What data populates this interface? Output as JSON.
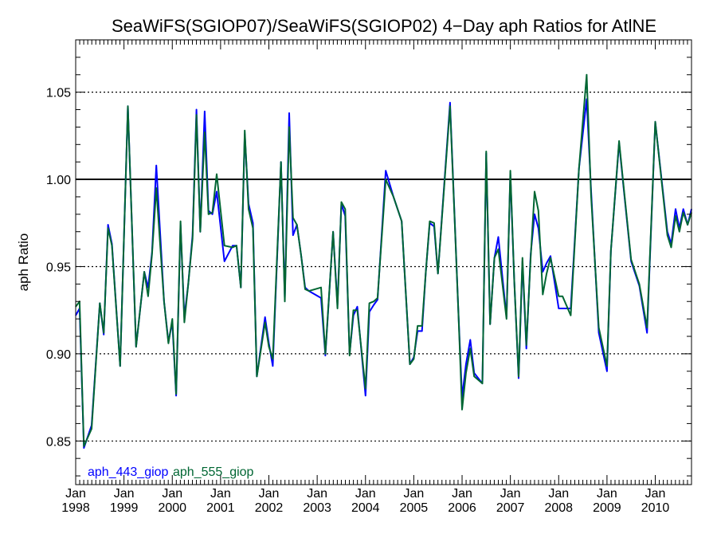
{
  "chart_data": {
    "type": "line",
    "title": "SeaWiFS(SGIOP07)/SeaWiFS(SGIOP02) 4−Day aph Ratios for AtlNE",
    "ylabel": "aph Ratio",
    "xlabel": "",
    "ylim": [
      0.825,
      1.08
    ],
    "xlim": [
      1998.0,
      2010.75
    ],
    "y_ticks": [
      0.85,
      0.9,
      0.95,
      1.0,
      1.05
    ],
    "y_tick_labels": [
      "0.85",
      "0.90",
      "0.95",
      "1.00",
      "1.05"
    ],
    "x_ticks": [
      {
        "month": "Jan",
        "year": "1998",
        "x": 1998
      },
      {
        "month": "Jan",
        "year": "1999",
        "x": 1999
      },
      {
        "month": "Jan",
        "year": "2000",
        "x": 2000
      },
      {
        "month": "Jan",
        "year": "2001",
        "x": 2001
      },
      {
        "month": "Jan",
        "year": "2002",
        "x": 2002
      },
      {
        "month": "Jan",
        "year": "2003",
        "x": 2003
      },
      {
        "month": "Jan",
        "year": "2004",
        "x": 2004
      },
      {
        "month": "Jan",
        "year": "2005",
        "x": 2005
      },
      {
        "month": "Jan",
        "year": "2006",
        "x": 2006
      },
      {
        "month": "Jan",
        "year": "2007",
        "x": 2007
      },
      {
        "month": "Jan",
        "year": "2008",
        "x": 2008
      },
      {
        "month": "Jan",
        "year": "2009",
        "x": 2009
      },
      {
        "month": "Jan",
        "year": "2010",
        "x": 2010
      }
    ],
    "reference_line": 1.0,
    "dotted_gridlines": [
      0.85,
      0.9,
      0.95,
      1.05
    ],
    "legend_placement": "bottom-left",
    "colors": {
      "aph_443_giop": "#0000ff",
      "aph_555_giop": "#006633",
      "reference": "#000000"
    },
    "series": [
      {
        "name": "aph_443_giop",
        "color": "#0000ff",
        "x": [
          1998.0,
          1998.08,
          1998.17,
          1998.33,
          1998.5,
          1998.58,
          1998.67,
          1998.75,
          1998.92,
          1999.08,
          1999.25,
          1999.42,
          1999.5,
          1999.58,
          1999.67,
          1999.83,
          1999.92,
          2000.0,
          2000.08,
          2000.17,
          2000.25,
          2000.33,
          2000.42,
          2000.5,
          2000.58,
          2000.67,
          2000.75,
          2000.83,
          2000.92,
          2001.08,
          2001.25,
          2001.33,
          2001.42,
          2001.5,
          2001.58,
          2001.67,
          2001.75,
          2001.92,
          2002.0,
          2002.08,
          2002.25,
          2002.33,
          2002.42,
          2002.5,
          2002.58,
          2002.67,
          2002.75,
          2002.83,
          2003.08,
          2003.17,
          2003.33,
          2003.42,
          2003.5,
          2003.58,
          2003.67,
          2003.75,
          2003.83,
          2004.0,
          2004.08,
          2004.17,
          2004.25,
          2004.42,
          2004.58,
          2004.75,
          2004.92,
          2005.0,
          2005.08,
          2005.17,
          2005.25,
          2005.33,
          2005.42,
          2005.5,
          2005.58,
          2005.75,
          2005.92,
          2006.0,
          2006.08,
          2006.17,
          2006.25,
          2006.42,
          2006.5,
          2006.58,
          2006.67,
          2006.75,
          2006.92,
          2007.0,
          2007.08,
          2007.17,
          2007.25,
          2007.33,
          2007.42,
          2007.5,
          2007.58,
          2007.67,
          2007.75,
          2007.83,
          2008.0,
          2008.08,
          2008.25,
          2008.42,
          2008.58,
          2008.67,
          2008.83,
          2009.0,
          2009.08,
          2009.25,
          2009.33,
          2009.5,
          2009.67,
          2009.83,
          2010.0,
          2010.25,
          2010.33,
          2010.42,
          2010.5,
          2010.58,
          2010.67,
          2010.75
        ],
        "values": [
          0.922,
          0.926,
          0.846,
          0.859,
          0.929,
          0.911,
          0.974,
          0.963,
          0.893,
          1.042,
          0.904,
          0.947,
          0.938,
          0.958,
          1.008,
          0.93,
          0.907,
          0.918,
          0.876,
          0.974,
          0.921,
          0.94,
          0.968,
          1.04,
          0.97,
          1.039,
          0.982,
          0.98,
          0.993,
          0.953,
          0.962,
          0.962,
          0.938,
          1.026,
          0.986,
          0.975,
          0.887,
          0.921,
          0.906,
          0.893,
          1.01,
          0.932,
          1.038,
          0.968,
          0.974,
          0.956,
          0.938,
          0.936,
          0.932,
          0.899,
          0.97,
          0.928,
          0.986,
          0.979,
          0.9,
          0.922,
          0.927,
          0.876,
          0.924,
          0.928,
          0.931,
          1.005,
          0.99,
          0.976,
          0.894,
          0.898,
          0.913,
          0.913,
          0.947,
          0.975,
          0.973,
          0.946,
          0.978,
          1.044,
          0.926,
          0.875,
          0.894,
          0.908,
          0.889,
          0.883,
          1.015,
          0.917,
          0.955,
          0.967,
          0.921,
          1.003,
          0.942,
          0.886,
          0.953,
          0.903,
          0.957,
          0.98,
          0.972,
          0.947,
          0.952,
          0.956,
          0.926,
          0.926,
          0.926,
          1.006,
          1.046,
          0.994,
          0.912,
          0.89,
          0.959,
          1.021,
          0.999,
          0.953,
          0.939,
          0.912,
          1.033,
          0.97,
          0.963,
          0.983,
          0.972,
          0.983,
          0.974,
          0.983
        ]
      },
      {
        "name": "aph_555_giop",
        "color": "#006633",
        "x": [
          1998.0,
          1998.08,
          1998.17,
          1998.33,
          1998.5,
          1998.58,
          1998.67,
          1998.75,
          1998.92,
          1999.08,
          1999.25,
          1999.42,
          1999.5,
          1999.58,
          1999.67,
          1999.83,
          1999.92,
          2000.0,
          2000.08,
          2000.17,
          2000.25,
          2000.33,
          2000.42,
          2000.5,
          2000.58,
          2000.67,
          2000.75,
          2000.83,
          2000.92,
          2001.08,
          2001.25,
          2001.33,
          2001.42,
          2001.5,
          2001.58,
          2001.67,
          2001.75,
          2001.92,
          2002.0,
          2002.08,
          2002.25,
          2002.33,
          2002.42,
          2002.5,
          2002.58,
          2002.67,
          2002.75,
          2002.83,
          2003.08,
          2003.17,
          2003.33,
          2003.42,
          2003.5,
          2003.58,
          2003.67,
          2003.75,
          2003.83,
          2004.0,
          2004.08,
          2004.17,
          2004.25,
          2004.42,
          2004.58,
          2004.75,
          2004.92,
          2005.0,
          2005.08,
          2005.17,
          2005.25,
          2005.33,
          2005.42,
          2005.5,
          2005.58,
          2005.75,
          2005.92,
          2006.0,
          2006.08,
          2006.17,
          2006.25,
          2006.42,
          2006.5,
          2006.58,
          2006.67,
          2006.75,
          2006.92,
          2007.0,
          2007.08,
          2007.17,
          2007.25,
          2007.33,
          2007.42,
          2007.5,
          2007.58,
          2007.67,
          2007.75,
          2007.83,
          2008.0,
          2008.08,
          2008.25,
          2008.42,
          2008.58,
          2008.67,
          2008.83,
          2009.0,
          2009.08,
          2009.25,
          2009.33,
          2009.5,
          2009.67,
          2009.83,
          2010.0,
          2010.25,
          2010.33,
          2010.42,
          2010.5,
          2010.58,
          2010.67,
          2010.75
        ],
        "values": [
          0.927,
          0.93,
          0.847,
          0.857,
          0.929,
          0.912,
          0.972,
          0.962,
          0.893,
          1.042,
          0.904,
          0.947,
          0.933,
          0.957,
          0.995,
          0.93,
          0.906,
          0.92,
          0.877,
          0.976,
          0.918,
          0.94,
          0.966,
          1.037,
          0.97,
          1.027,
          0.98,
          0.981,
          1.003,
          0.962,
          0.961,
          0.962,
          0.938,
          1.028,
          0.983,
          0.972,
          0.887,
          0.918,
          0.904,
          0.897,
          1.01,
          0.93,
          1.03,
          0.978,
          0.974,
          0.956,
          0.937,
          0.936,
          0.938,
          0.9,
          0.97,
          0.926,
          0.987,
          0.983,
          0.899,
          0.925,
          0.925,
          0.88,
          0.929,
          0.93,
          0.932,
          1.0,
          0.99,
          0.976,
          0.894,
          0.897,
          0.916,
          0.916,
          0.947,
          0.976,
          0.975,
          0.946,
          0.977,
          1.042,
          0.926,
          0.868,
          0.889,
          0.903,
          0.887,
          0.883,
          1.016,
          0.917,
          0.955,
          0.96,
          0.92,
          1.005,
          0.942,
          0.887,
          0.955,
          0.905,
          0.955,
          0.993,
          0.982,
          0.934,
          0.946,
          0.955,
          0.933,
          0.933,
          0.922,
          1.006,
          1.06,
          0.991,
          0.915,
          0.893,
          0.959,
          1.022,
          1.0,
          0.954,
          0.94,
          0.915,
          1.033,
          0.968,
          0.961,
          0.979,
          0.97,
          0.981,
          0.974,
          0.981
        ]
      }
    ]
  }
}
